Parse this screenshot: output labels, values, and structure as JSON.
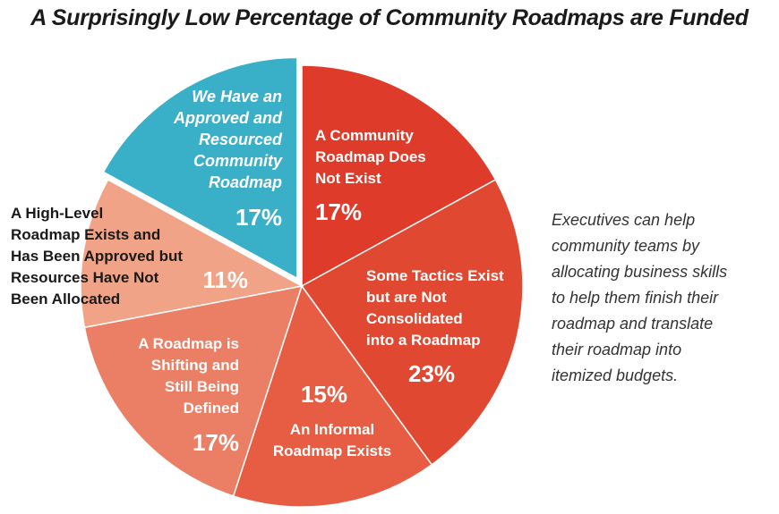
{
  "title": "A Surprisingly Low Percentage of Community Roadmaps are Funded",
  "note": "Executives can help\ncommunity teams by\nallocating business skills\nto help them finish their\nroadmap and translate\ntheir roadmap into\nitemized budgets.",
  "chart_data": {
    "type": "pie",
    "title": "A Surprisingly Low Percentage of Community Roadmaps are Funded",
    "slices": [
      {
        "label": "A Community Roadmap Does Not Exist",
        "value": 17,
        "value_label": "17%",
        "color": "#df3b2b"
      },
      {
        "label": "Some Tactics Exist but are Not Consolidated into a Roadmap",
        "value": 23,
        "value_label": "23%",
        "color": "#e14832"
      },
      {
        "label": "An Informal Roadmap Exists",
        "value": 15,
        "value_label": "15%",
        "color": "#e65d43"
      },
      {
        "label": "A Roadmap is Shifting and Still Being Defined",
        "value": 17,
        "value_label": "17%",
        "color": "#eb7f66"
      },
      {
        "label": "A High-Level Roadmap Exists and Has Been Approved but Resources Have Not Been Allocated",
        "value": 11,
        "value_label": "11%",
        "color": "#f0a386"
      },
      {
        "label": "We Have an Approved and Resourced Community Roadmap",
        "value": 17,
        "value_label": "17%",
        "color": "#3aafc8",
        "exploded": true
      }
    ]
  }
}
